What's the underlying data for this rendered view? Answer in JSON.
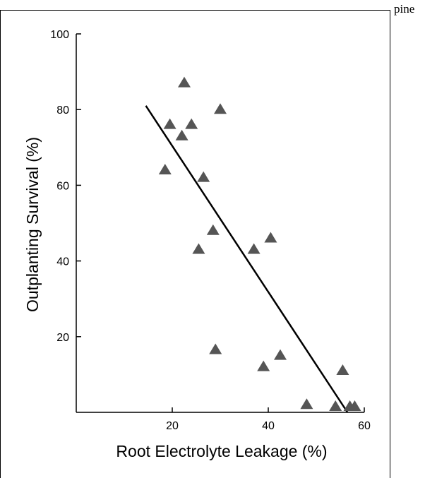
{
  "page": {
    "corner_text": "pine"
  },
  "chart_data": {
    "type": "scatter",
    "xlabel": "Root Electrolyte Leakage (%)",
    "ylabel": "Outplanting Survival (%)",
    "xlim": [
      0,
      60
    ],
    "ylim": [
      0,
      100
    ],
    "x_ticks": [
      20,
      40,
      60
    ],
    "y_ticks": [
      20,
      40,
      60,
      80,
      100
    ],
    "grid": false,
    "marker": "triangle",
    "series": [
      {
        "points": [
          {
            "x": 18.5,
            "y": 64
          },
          {
            "x": 19.5,
            "y": 76
          },
          {
            "x": 22,
            "y": 73
          },
          {
            "x": 22.5,
            "y": 87
          },
          {
            "x": 24,
            "y": 76
          },
          {
            "x": 25.5,
            "y": 43
          },
          {
            "x": 26.5,
            "y": 62
          },
          {
            "x": 28.5,
            "y": 48
          },
          {
            "x": 29,
            "y": 16.5
          },
          {
            "x": 30,
            "y": 80
          },
          {
            "x": 37,
            "y": 43
          },
          {
            "x": 39,
            "y": 12
          },
          {
            "x": 40.5,
            "y": 46
          },
          {
            "x": 42.5,
            "y": 15
          },
          {
            "x": 48,
            "y": 2
          },
          {
            "x": 54,
            "y": 1.5
          },
          {
            "x": 55.5,
            "y": 11
          },
          {
            "x": 57,
            "y": 1.5
          },
          {
            "x": 58,
            "y": 1.5
          }
        ]
      }
    ],
    "trend_line": {
      "x": [
        14.5,
        56.5
      ],
      "y": [
        81,
        0
      ]
    }
  }
}
